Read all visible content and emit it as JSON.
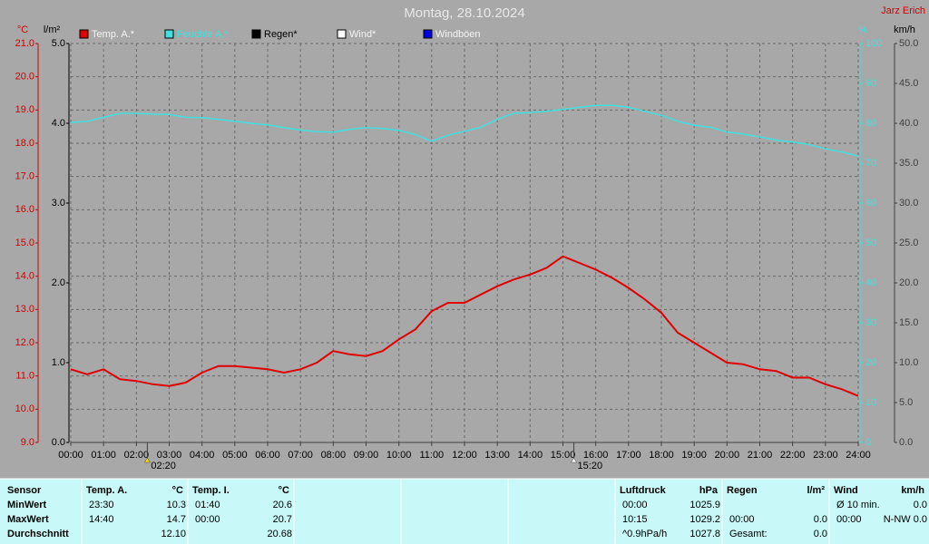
{
  "chart_data": {
    "type": "line",
    "title": "Montag, 28.10.2024",
    "author": "Jarz Erich",
    "grid": true,
    "x": [
      0,
      0.5,
      1,
      1.5,
      2,
      2.5,
      3,
      3.5,
      4,
      4.5,
      5,
      5.5,
      6,
      6.5,
      7,
      7.5,
      8,
      8.5,
      9,
      9.5,
      10,
      10.5,
      11,
      11.5,
      12,
      12.5,
      13,
      13.5,
      14,
      14.5,
      15,
      15.5,
      16,
      16.5,
      17,
      17.5,
      18,
      18.5,
      19,
      19.5,
      20,
      20.5,
      21,
      21.5,
      22,
      22.5,
      23,
      23.5,
      24
    ],
    "xlim": [
      0,
      24
    ],
    "xticks": [
      {
        "value": 0,
        "label": "00:00"
      },
      {
        "value": 1,
        "label": "01:00"
      },
      {
        "value": 2,
        "label": "02:00"
      },
      {
        "value": 3,
        "label": "03:00"
      },
      {
        "value": 4,
        "label": "04:00"
      },
      {
        "value": 5,
        "label": "05:00"
      },
      {
        "value": 6,
        "label": "06:00"
      },
      {
        "value": 7,
        "label": "07:00"
      },
      {
        "value": 8,
        "label": "08:00"
      },
      {
        "value": 9,
        "label": "09:00"
      },
      {
        "value": 10,
        "label": "10:00"
      },
      {
        "value": 11,
        "label": "11:00"
      },
      {
        "value": 12,
        "label": "12:00"
      },
      {
        "value": 13,
        "label": "13:00"
      },
      {
        "value": 14,
        "label": "14:00"
      },
      {
        "value": 15,
        "label": "15:00"
      },
      {
        "value": 16,
        "label": "16:00"
      },
      {
        "value": 17,
        "label": "17:00"
      },
      {
        "value": 18,
        "label": "18:00"
      },
      {
        "value": 19,
        "label": "19:00"
      },
      {
        "value": 20,
        "label": "20:00"
      },
      {
        "value": 21,
        "label": "21:00"
      },
      {
        "value": 22,
        "label": "22:00"
      },
      {
        "value": 23,
        "label": "23:00"
      },
      {
        "value": 24,
        "label": "24:00"
      }
    ],
    "y_label": "°C",
    "ylim": [
      9,
      21
    ],
    "yticks": [
      {
        "value": 9,
        "label": "9.0"
      },
      {
        "value": 10,
        "label": "10.0"
      },
      {
        "value": 11,
        "label": "11.0"
      },
      {
        "value": 12,
        "label": "12.0"
      },
      {
        "value": 13,
        "label": "13.0"
      },
      {
        "value": 14,
        "label": "14.0"
      },
      {
        "value": 15,
        "label": "15.0"
      },
      {
        "value": 16,
        "label": "16.0"
      },
      {
        "value": 17,
        "label": "17.0"
      },
      {
        "value": 18,
        "label": "18.0"
      },
      {
        "value": 19,
        "label": "19.0"
      },
      {
        "value": 20,
        "label": "20.0"
      },
      {
        "value": 21,
        "label": "21.0"
      }
    ],
    "rain_label": "l/m²",
    "rain_ylim": [
      0,
      5
    ],
    "rain_yticks": [
      {
        "value": 0,
        "label": "0.0"
      },
      {
        "value": 1,
        "label": "1.0"
      },
      {
        "value": 2,
        "label": "2.0"
      },
      {
        "value": 3,
        "label": "3.0"
      },
      {
        "value": 4,
        "label": "4.0"
      },
      {
        "value": 5,
        "label": "5.0"
      }
    ],
    "y2_label": "%",
    "y2lim": [
      0,
      100
    ],
    "y2ticks": [
      0,
      10,
      20,
      30,
      40,
      50,
      60,
      70,
      80,
      90,
      100
    ],
    "y3_label": "km/h",
    "y3lim": [
      0,
      50
    ],
    "y3ticks": [
      {
        "value": 0,
        "label": "0.0"
      },
      {
        "value": 5,
        "label": "5.0"
      },
      {
        "value": 10,
        "label": "10.0"
      },
      {
        "value": 15,
        "label": "15.0"
      },
      {
        "value": 20,
        "label": "20.0"
      },
      {
        "value": 25,
        "label": "25.0"
      },
      {
        "value": 30,
        "label": "30.0"
      },
      {
        "value": 35,
        "label": "35.0"
      },
      {
        "value": 40,
        "label": "40.0"
      },
      {
        "value": 45,
        "label": "45.0"
      },
      {
        "value": 50,
        "label": "50.0"
      }
    ],
    "series": [
      {
        "name": "Temp. A.*",
        "color": "#e00000",
        "axis": "y",
        "values": [
          11.2,
          11.05,
          11.2,
          10.9,
          10.85,
          10.75,
          10.7,
          10.8,
          11.1,
          11.3,
          11.3,
          11.25,
          11.2,
          11.1,
          11.2,
          11.4,
          11.75,
          11.65,
          11.6,
          11.75,
          12.1,
          12.4,
          12.95,
          13.2,
          13.2,
          13.45,
          13.7,
          13.9,
          14.05,
          14.25,
          14.6,
          14.4,
          14.2,
          13.95,
          13.65,
          13.3,
          12.9,
          12.3,
          12.0,
          11.7,
          11.4,
          11.35,
          11.2,
          11.15,
          10.95,
          10.95,
          10.75,
          10.6,
          10.4
        ]
      },
      {
        "name": "Feuchte A.*",
        "color": "#40e0e0",
        "axis": "y2",
        "values": [
          80.2,
          80.5,
          81.5,
          82.5,
          82.5,
          82.3,
          82.2,
          81.5,
          81.4,
          81,
          80.5,
          80,
          79.6,
          78.9,
          78.3,
          77.9,
          77.8,
          78.5,
          78.9,
          78.7,
          78.2,
          77.2,
          75.5,
          77,
          78,
          79,
          81,
          82.5,
          82.7,
          83,
          83.5,
          84,
          84.5,
          84.5,
          84,
          83,
          82,
          80.5,
          79.5,
          79,
          77.8,
          77.3,
          76.6,
          75.8,
          75.3,
          74.7,
          73.6,
          72.8,
          71.8
        ]
      },
      {
        "name": "Regen*",
        "color": "#000000",
        "axis": "rain",
        "values": [
          null,
          null,
          null,
          null,
          null,
          null,
          null,
          null,
          null,
          null,
          null,
          null,
          null,
          null,
          null,
          null,
          null,
          null,
          null,
          null,
          null,
          null,
          null,
          null,
          null,
          null,
          null,
          null,
          null,
          null,
          null,
          null,
          null,
          null,
          null,
          null,
          null,
          null,
          null,
          null,
          null,
          null,
          null,
          null,
          null,
          null,
          null,
          null,
          null
        ]
      },
      {
        "name": "Wind*",
        "color": "#ffffff",
        "axis": "y3",
        "values": [
          null,
          null,
          null,
          null,
          null,
          null,
          null,
          null,
          null,
          null,
          null,
          null,
          null,
          null,
          null,
          null,
          null,
          null,
          null,
          null,
          null,
          null,
          null,
          null,
          null,
          null,
          null,
          null,
          null,
          null,
          null,
          null,
          null,
          null,
          null,
          null,
          null,
          null,
          null,
          null,
          null,
          null,
          null,
          null,
          null,
          null,
          null,
          null,
          null
        ]
      },
      {
        "name": "Windböen",
        "color": "#0000e0",
        "axis": "y3",
        "values": [
          null,
          null,
          null,
          null,
          null,
          null,
          null,
          null,
          null,
          null,
          null,
          null,
          null,
          null,
          null,
          null,
          null,
          null,
          null,
          null,
          null,
          null,
          null,
          null,
          null,
          null,
          null,
          null,
          null,
          null,
          null,
          null,
          null,
          null,
          null,
          null,
          null,
          null,
          null,
          null,
          null,
          null,
          null,
          null,
          null,
          null,
          null,
          null,
          null
        ]
      }
    ],
    "annotations": [
      {
        "x": 2.3333,
        "label": "02:20"
      },
      {
        "x": 15.3333,
        "label": "15:20"
      }
    ]
  },
  "table": {
    "row_labels": [
      "Sensor",
      "MinWert",
      "MaxWert",
      "Durchschnitt"
    ],
    "blocks": [
      {
        "name": "Temp. A.",
        "unit": "°C",
        "min": {
          "time": "23:30",
          "value": "10.3"
        },
        "max": {
          "time": "14:40",
          "value": "14.7"
        },
        "avg": {
          "value": "12.10"
        }
      },
      {
        "name": "Temp. I.",
        "unit": "°C",
        "min": {
          "time": "01:40",
          "value": "20.6"
        },
        "max": {
          "time": "00:00",
          "value": "20.7"
        },
        "avg": {
          "value": "20.68"
        }
      },
      {
        "name": "Luftdruck",
        "unit": "hPa",
        "min": {
          "time": "00:00",
          "value": "1025.9"
        },
        "max": {
          "time": "10:15",
          "value": "1029.2"
        },
        "avg": {
          "time": "^0.9hPa/h",
          "value": "1027.8"
        }
      },
      {
        "name": "Regen",
        "unit": "l/m²",
        "max": {
          "time": "00:00",
          "value": "0.0"
        },
        "avg": {
          "time": "Gesamt:",
          "value": "0.0"
        }
      },
      {
        "name": "Wind",
        "unit": "km/h",
        "min": {
          "time": "Ø 10 min.",
          "value": "0.0"
        },
        "max": {
          "time": "00:00",
          "value": "N-NW 0.0"
        }
      }
    ]
  }
}
